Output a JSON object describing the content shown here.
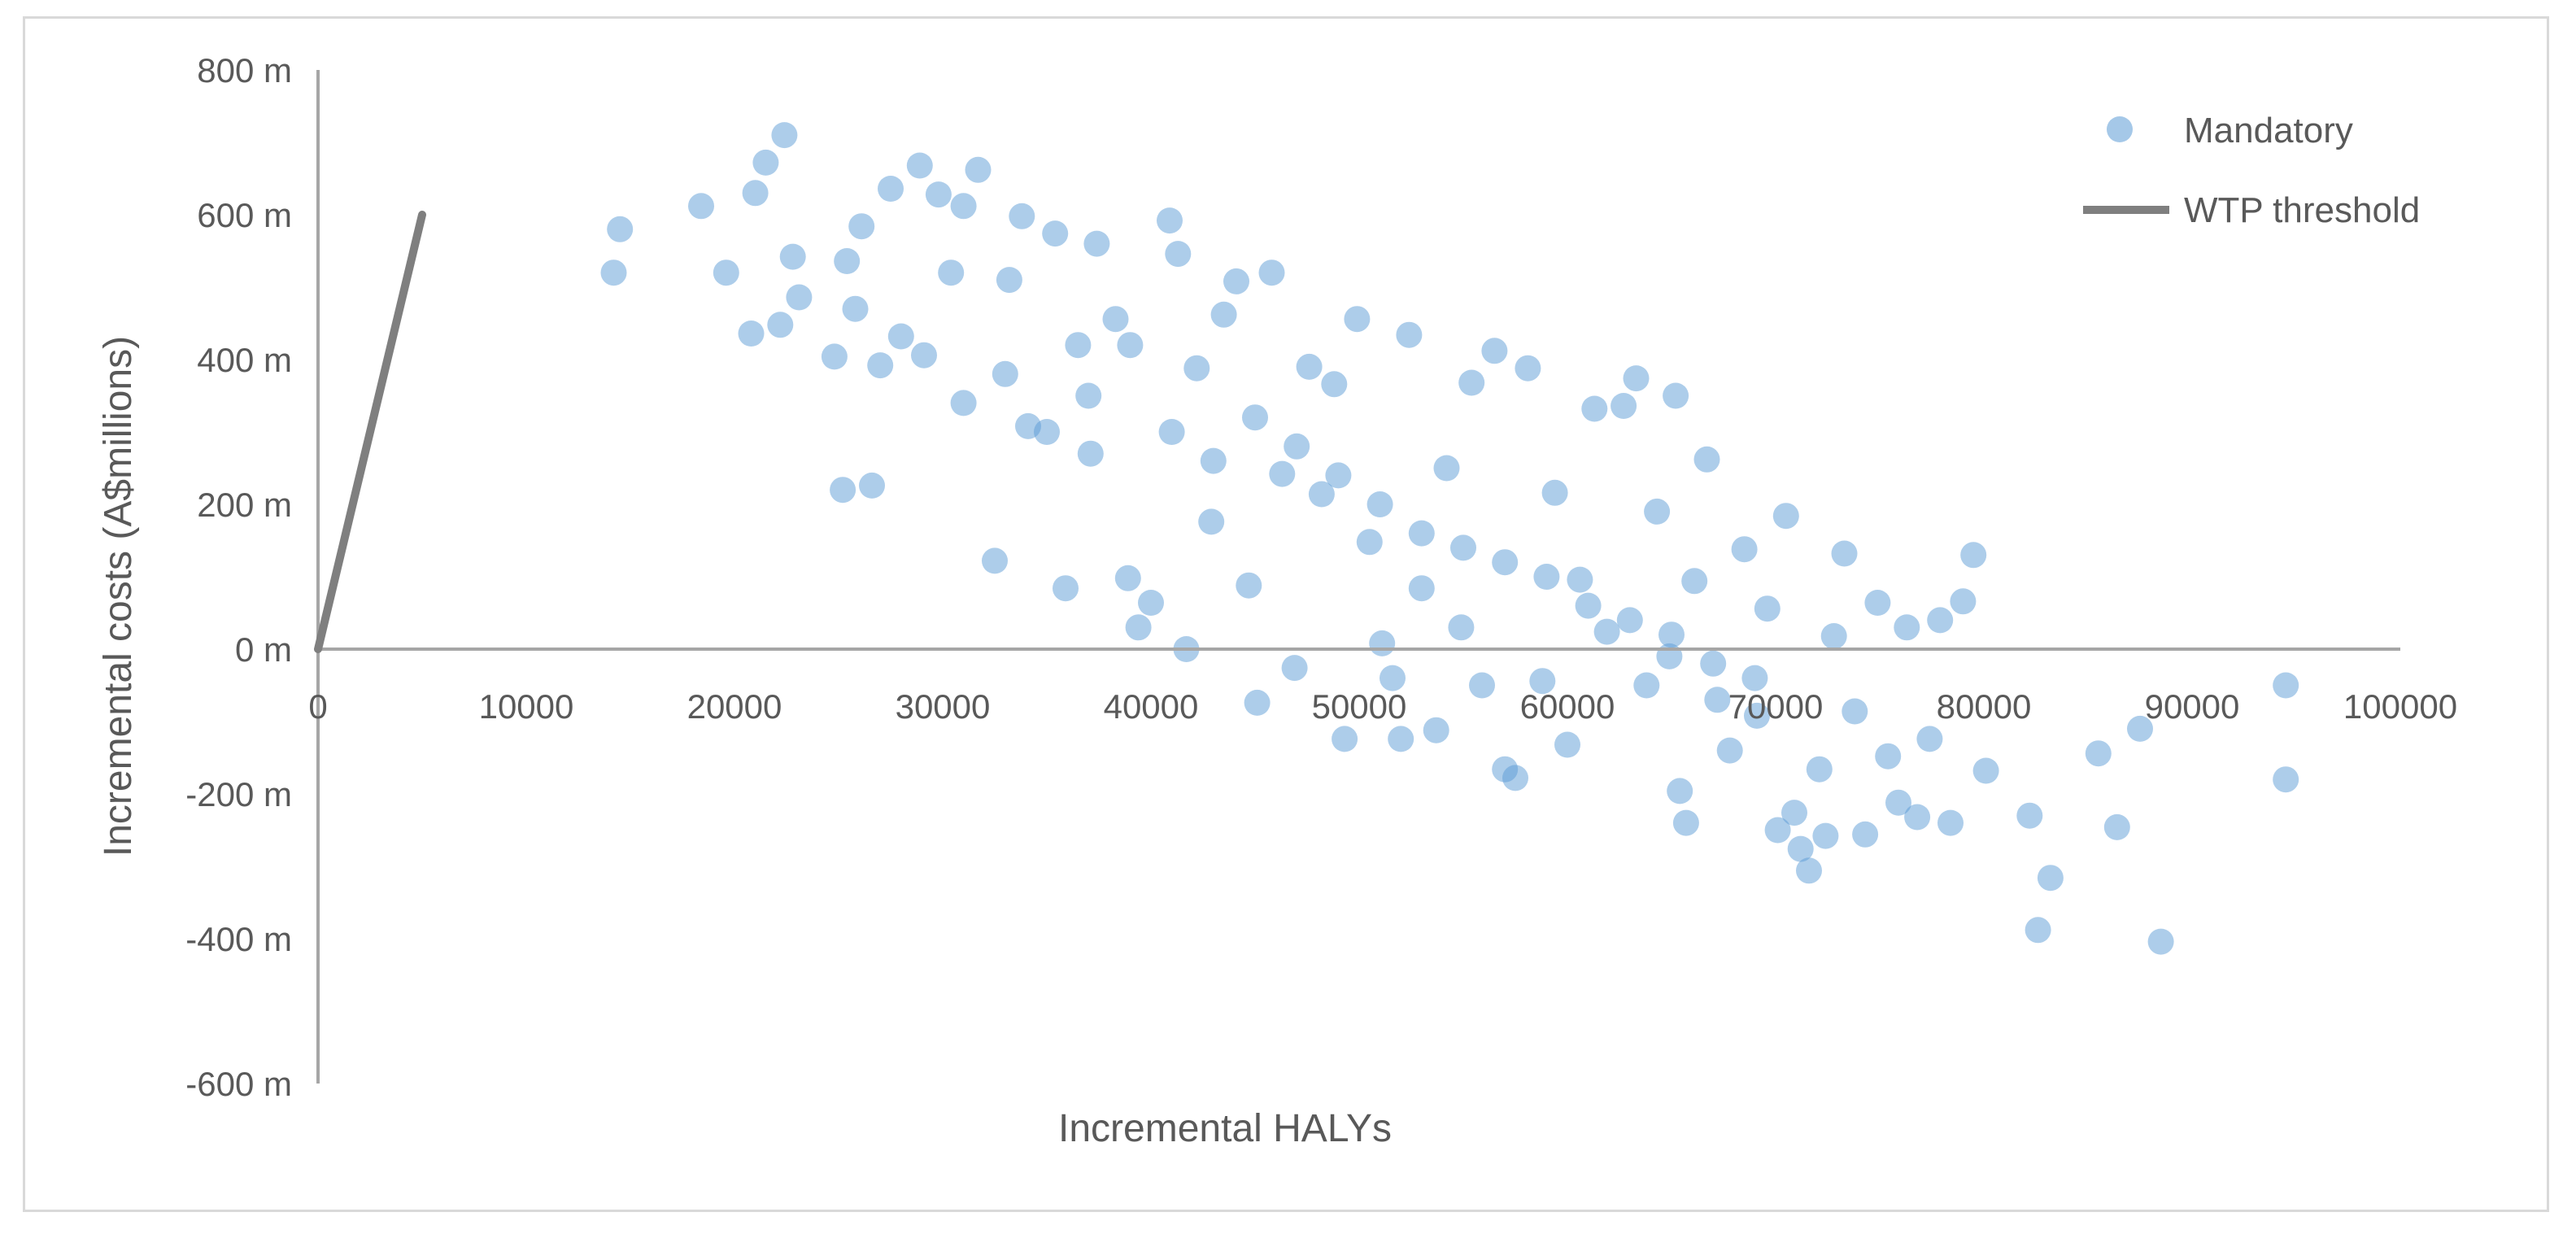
{
  "chart_data": {
    "type": "scatter",
    "title": "",
    "xlabel": "Incremental HALYs",
    "ylabel": "Incremental costs (A$millions)",
    "xlim": [
      0,
      100000
    ],
    "ylim": [
      -600,
      800
    ],
    "x_ticks": [
      "0",
      "10000",
      "20000",
      "30000",
      "40000",
      "50000",
      "60000",
      "70000",
      "80000",
      "90000",
      "100000"
    ],
    "y_ticks": [
      "800 m",
      "600 m",
      "400 m",
      "200 m",
      "0 m",
      "-200 m",
      "-400 m",
      "-600 m"
    ],
    "grid": false,
    "legend_position": "top-right",
    "colors": {
      "points": "#5b9bd5",
      "threshold": "#7f7f7f",
      "axis": "#a6a6a6"
    },
    "threshold": {
      "name": "WTP threshold",
      "points": [
        [
          0,
          0
        ],
        [
          5000,
          600
        ]
      ]
    },
    "series": [
      {
        "name": "Mandatory",
        "points": [
          [
            14200,
            520
          ],
          [
            14500,
            580
          ],
          [
            18400,
            612
          ],
          [
            19600,
            520
          ],
          [
            20800,
            436
          ],
          [
            21000,
            630
          ],
          [
            21500,
            672
          ],
          [
            22200,
            448
          ],
          [
            22400,
            710
          ],
          [
            22800,
            542
          ],
          [
            23100,
            486
          ],
          [
            24800,
            404
          ],
          [
            25200,
            220
          ],
          [
            25400,
            536
          ],
          [
            25800,
            470
          ],
          [
            26100,
            584
          ],
          [
            26600,
            226
          ],
          [
            27000,
            392
          ],
          [
            27500,
            636
          ],
          [
            28000,
            432
          ],
          [
            28900,
            668
          ],
          [
            29100,
            406
          ],
          [
            29800,
            628
          ],
          [
            30400,
            520
          ],
          [
            31000,
            612
          ],
          [
            31700,
            662
          ],
          [
            32500,
            122
          ],
          [
            33200,
            510
          ],
          [
            33800,
            598
          ],
          [
            34100,
            308
          ],
          [
            35400,
            574
          ],
          [
            35900,
            84
          ],
          [
            36500,
            420
          ],
          [
            37100,
            270
          ],
          [
            37400,
            560
          ],
          [
            38300,
            456
          ],
          [
            38900,
            98
          ],
          [
            39400,
            30
          ],
          [
            40000,
            64
          ],
          [
            40900,
            592
          ],
          [
            41300,
            546
          ],
          [
            41700,
            0
          ],
          [
            42200,
            388
          ],
          [
            42900,
            176
          ],
          [
            43500,
            462
          ],
          [
            44100,
            508
          ],
          [
            44700,
            88
          ],
          [
            45100,
            -74
          ],
          [
            45800,
            520
          ],
          [
            46300,
            242
          ],
          [
            46900,
            -26
          ],
          [
            47600,
            390
          ],
          [
            48200,
            214
          ],
          [
            48800,
            366
          ],
          [
            49300,
            -124
          ],
          [
            49900,
            456
          ],
          [
            50500,
            148
          ],
          [
            51100,
            8
          ],
          [
            51600,
            -40
          ],
          [
            52000,
            -124
          ],
          [
            52400,
            434
          ],
          [
            53000,
            84
          ],
          [
            53700,
            -112
          ],
          [
            54200,
            250
          ],
          [
            54900,
            30
          ],
          [
            55400,
            368
          ],
          [
            55900,
            -50
          ],
          [
            56500,
            412
          ],
          [
            57000,
            -166
          ],
          [
            57500,
            -178
          ],
          [
            58100,
            388
          ],
          [
            58800,
            -44
          ],
          [
            59400,
            216
          ],
          [
            60000,
            -132
          ],
          [
            60600,
            96
          ],
          [
            61300,
            332
          ],
          [
            61900,
            24
          ],
          [
            62700,
            336
          ],
          [
            63300,
            374
          ],
          [
            63800,
            -50
          ],
          [
            64300,
            190
          ],
          [
            64900,
            -10
          ],
          [
            65200,
            350
          ],
          [
            65400,
            -196
          ],
          [
            65700,
            -240
          ],
          [
            66100,
            94
          ],
          [
            66700,
            262
          ],
          [
            67200,
            -70
          ],
          [
            67800,
            -140
          ],
          [
            68500,
            138
          ],
          [
            69100,
            -92
          ],
          [
            69600,
            56
          ],
          [
            70100,
            -250
          ],
          [
            70500,
            184
          ],
          [
            70900,
            -226
          ],
          [
            71200,
            -276
          ],
          [
            71600,
            -306
          ],
          [
            72100,
            -166
          ],
          [
            72400,
            -258
          ],
          [
            72800,
            18
          ],
          [
            73300,
            132
          ],
          [
            73800,
            -86
          ],
          [
            74300,
            -256
          ],
          [
            74900,
            64
          ],
          [
            75400,
            -148
          ],
          [
            75900,
            -212
          ],
          [
            76300,
            30
          ],
          [
            76800,
            -232
          ],
          [
            77400,
            -124
          ],
          [
            77900,
            40
          ],
          [
            78400,
            -240
          ],
          [
            79000,
            66
          ],
          [
            79500,
            130
          ],
          [
            80100,
            -168
          ],
          [
            82200,
            -230
          ],
          [
            82600,
            -388
          ],
          [
            83200,
            -316
          ],
          [
            85500,
            -144
          ],
          [
            86400,
            -246
          ],
          [
            87500,
            -110
          ],
          [
            88500,
            -404
          ],
          [
            94500,
            -50
          ],
          [
            94500,
            -180
          ],
          [
            31000,
            340
          ],
          [
            33000,
            380
          ],
          [
            35000,
            300
          ],
          [
            37000,
            350
          ],
          [
            39000,
            420
          ],
          [
            41000,
            300
          ],
          [
            43000,
            260
          ],
          [
            45000,
            320
          ],
          [
            47000,
            280
          ],
          [
            49000,
            240
          ],
          [
            51000,
            200
          ],
          [
            53000,
            160
          ],
          [
            55000,
            140
          ],
          [
            57000,
            120
          ],
          [
            59000,
            100
          ],
          [
            61000,
            60
          ],
          [
            63000,
            40
          ],
          [
            65000,
            20
          ],
          [
            67000,
            -20
          ],
          [
            69000,
            -40
          ]
        ]
      }
    ]
  }
}
